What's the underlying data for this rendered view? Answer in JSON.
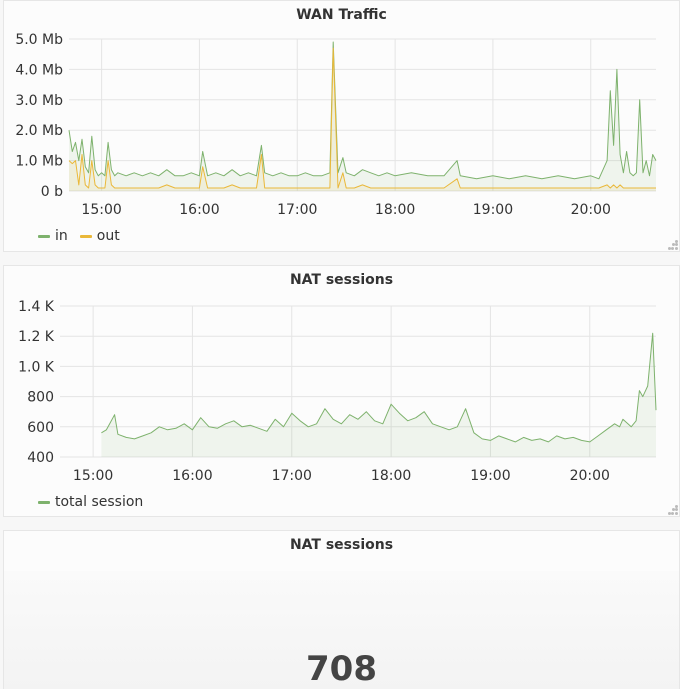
{
  "colors": {
    "in": "#7eb26d",
    "out": "#eab839",
    "sessions": "#7eb26d",
    "grid": "#e4e4e4",
    "text": "#333333"
  },
  "wan": {
    "title": "WAN Traffic",
    "legend": [
      {
        "label": "in",
        "color": "#7eb26d"
      },
      {
        "label": "out",
        "color": "#eab839"
      }
    ]
  },
  "nat": {
    "title": "NAT sessions",
    "legend": [
      {
        "label": "total session",
        "color": "#7eb26d"
      }
    ]
  },
  "stat": {
    "title": "NAT sessions",
    "value": "708"
  },
  "chart_data": [
    {
      "type": "area",
      "title": "WAN Traffic",
      "x_unit": "time (HH:MM)",
      "y_unit": "Mb",
      "ylim": [
        0,
        5
      ],
      "y_ticks": [
        "0 b",
        "1.0 Mb",
        "2.0 Mb",
        "3.0 Mb",
        "4.0 Mb",
        "5.0 Mb"
      ],
      "x_ticks": [
        "15:00",
        "16:00",
        "17:00",
        "18:00",
        "19:00",
        "20:00"
      ],
      "xlim": [
        "14:40",
        "20:40"
      ],
      "series": [
        {
          "name": "in",
          "x": [
            "14:40",
            "14:42",
            "14:44",
            "14:46",
            "14:48",
            "14:50",
            "14:52",
            "14:54",
            "14:56",
            "14:58",
            "15:00",
            "15:02",
            "15:04",
            "15:06",
            "15:08",
            "15:10",
            "15:15",
            "15:20",
            "15:25",
            "15:30",
            "15:35",
            "15:40",
            "15:45",
            "15:50",
            "15:55",
            "16:00",
            "16:02",
            "16:05",
            "16:10",
            "16:15",
            "16:20",
            "16:25",
            "16:30",
            "16:35",
            "16:38",
            "16:40",
            "16:45",
            "16:50",
            "16:55",
            "17:00",
            "17:05",
            "17:10",
            "17:15",
            "17:20",
            "17:22",
            "17:25",
            "17:28",
            "17:30",
            "17:35",
            "17:40",
            "17:45",
            "17:50",
            "17:55",
            "18:00",
            "18:10",
            "18:20",
            "18:30",
            "18:38",
            "18:40",
            "18:50",
            "19:00",
            "19:10",
            "19:20",
            "19:30",
            "19:40",
            "19:50",
            "20:00",
            "20:05",
            "20:10",
            "20:12",
            "20:14",
            "20:16",
            "20:18",
            "20:20",
            "20:22",
            "20:24",
            "20:26",
            "20:28",
            "20:30",
            "20:32",
            "20:34",
            "20:36",
            "20:38",
            "20:40"
          ],
          "values": [
            2.0,
            1.3,
            1.6,
            1.0,
            1.7,
            0.8,
            0.6,
            1.8,
            0.7,
            0.5,
            0.6,
            0.5,
            1.6,
            0.7,
            0.5,
            0.6,
            0.5,
            0.6,
            0.5,
            0.6,
            0.5,
            0.7,
            0.5,
            0.5,
            0.6,
            0.5,
            1.3,
            0.5,
            0.6,
            0.5,
            0.7,
            0.5,
            0.6,
            0.5,
            1.5,
            0.6,
            0.5,
            0.6,
            0.5,
            0.5,
            0.6,
            0.5,
            0.5,
            0.6,
            4.9,
            0.6,
            1.1,
            0.6,
            0.5,
            0.7,
            0.6,
            0.5,
            0.6,
            0.5,
            0.6,
            0.5,
            0.5,
            1.0,
            0.5,
            0.4,
            0.5,
            0.4,
            0.5,
            0.4,
            0.5,
            0.4,
            0.5,
            0.4,
            1.0,
            3.3,
            1.5,
            4.0,
            1.2,
            0.6,
            1.3,
            0.6,
            0.5,
            0.6,
            3.0,
            0.6,
            1.0,
            0.5,
            1.2,
            1.0
          ]
        },
        {
          "name": "out",
          "x": [
            "14:40",
            "14:42",
            "14:44",
            "14:46",
            "14:48",
            "14:50",
            "14:52",
            "14:54",
            "14:56",
            "14:58",
            "15:00",
            "15:02",
            "15:04",
            "15:06",
            "15:08",
            "15:10",
            "15:15",
            "15:20",
            "15:25",
            "15:30",
            "15:35",
            "15:40",
            "15:45",
            "15:50",
            "15:55",
            "16:00",
            "16:02",
            "16:05",
            "16:10",
            "16:15",
            "16:20",
            "16:25",
            "16:30",
            "16:35",
            "16:38",
            "16:40",
            "16:45",
            "16:50",
            "16:55",
            "17:00",
            "17:05",
            "17:10",
            "17:15",
            "17:20",
            "17:22",
            "17:25",
            "17:28",
            "17:30",
            "17:35",
            "17:40",
            "17:45",
            "17:50",
            "17:55",
            "18:00",
            "18:10",
            "18:20",
            "18:30",
            "18:38",
            "18:40",
            "18:50",
            "19:00",
            "19:10",
            "19:20",
            "19:30",
            "19:40",
            "19:50",
            "20:00",
            "20:05",
            "20:10",
            "20:12",
            "20:14",
            "20:16",
            "20:18",
            "20:20",
            "20:22",
            "20:24",
            "20:26",
            "20:28",
            "20:30",
            "20:32",
            "20:34",
            "20:36",
            "20:38",
            "20:40"
          ],
          "values": [
            1.0,
            0.9,
            1.0,
            0.2,
            1.2,
            0.2,
            0.1,
            1.0,
            0.2,
            0.1,
            0.1,
            0.1,
            1.0,
            0.2,
            0.1,
            0.1,
            0.1,
            0.1,
            0.1,
            0.1,
            0.1,
            0.2,
            0.1,
            0.1,
            0.1,
            0.1,
            0.8,
            0.1,
            0.1,
            0.1,
            0.2,
            0.1,
            0.1,
            0.1,
            1.2,
            0.1,
            0.1,
            0.1,
            0.1,
            0.1,
            0.1,
            0.1,
            0.1,
            0.1,
            4.7,
            0.1,
            0.6,
            0.1,
            0.1,
            0.2,
            0.1,
            0.1,
            0.1,
            0.1,
            0.1,
            0.1,
            0.1,
            0.4,
            0.1,
            0.1,
            0.1,
            0.1,
            0.1,
            0.1,
            0.1,
            0.1,
            0.1,
            0.1,
            0.2,
            0.1,
            0.2,
            0.1,
            0.2,
            0.1,
            0.1,
            0.1,
            0.1,
            0.1,
            0.1,
            0.1,
            0.1,
            0.1,
            0.1,
            0.1
          ]
        }
      ]
    },
    {
      "type": "area",
      "title": "NAT sessions",
      "ylim": [
        400,
        1400
      ],
      "y_ticks": [
        "400",
        "600",
        "800",
        "1.0 K",
        "1.2 K",
        "1.4 K"
      ],
      "x_ticks": [
        "15:00",
        "16:00",
        "17:00",
        "18:00",
        "19:00",
        "20:00"
      ],
      "xlim": [
        "14:40",
        "20:40"
      ],
      "series": [
        {
          "name": "total session",
          "x": [
            "15:05",
            "15:08",
            "15:10",
            "15:13",
            "15:15",
            "15:20",
            "15:25",
            "15:30",
            "15:35",
            "15:40",
            "15:45",
            "15:50",
            "15:55",
            "16:00",
            "16:05",
            "16:10",
            "16:15",
            "16:20",
            "16:25",
            "16:30",
            "16:35",
            "16:40",
            "16:45",
            "16:50",
            "16:55",
            "17:00",
            "17:05",
            "17:10",
            "17:15",
            "17:20",
            "17:25",
            "17:30",
            "17:35",
            "17:40",
            "17:45",
            "17:50",
            "17:55",
            "18:00",
            "18:05",
            "18:10",
            "18:15",
            "18:20",
            "18:25",
            "18:30",
            "18:35",
            "18:40",
            "18:45",
            "18:50",
            "18:55",
            "19:00",
            "19:05",
            "19:10",
            "19:15",
            "19:20",
            "19:25",
            "19:30",
            "19:35",
            "19:40",
            "19:45",
            "19:50",
            "19:55",
            "20:00",
            "20:05",
            "20:10",
            "20:15",
            "20:18",
            "20:20",
            "20:25",
            "20:28",
            "20:30",
            "20:32",
            "20:35",
            "20:38",
            "20:40"
          ],
          "values": [
            560,
            580,
            620,
            680,
            550,
            530,
            520,
            540,
            560,
            600,
            580,
            590,
            620,
            580,
            660,
            600,
            590,
            620,
            640,
            600,
            610,
            590,
            570,
            650,
            600,
            690,
            640,
            600,
            620,
            720,
            650,
            620,
            680,
            650,
            700,
            640,
            620,
            750,
            690,
            640,
            660,
            700,
            620,
            600,
            580,
            600,
            720,
            560,
            520,
            510,
            540,
            520,
            500,
            530,
            510,
            520,
            500,
            540,
            520,
            530,
            510,
            500,
            540,
            580,
            620,
            600,
            650,
            600,
            640,
            840,
            800,
            870,
            1220,
            710
          ]
        }
      ]
    }
  ]
}
